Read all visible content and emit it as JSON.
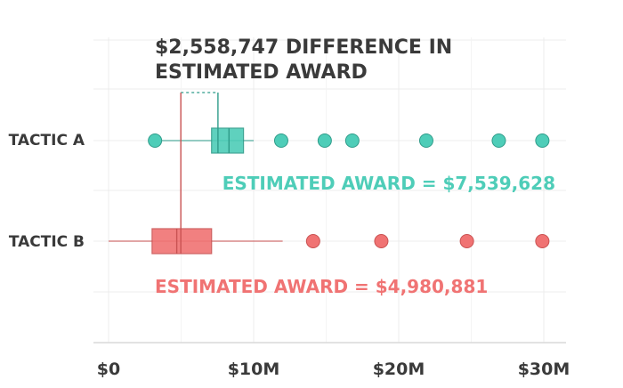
{
  "chart_data": {
    "type": "box",
    "title": "$2,558,747 DIFFERENCE IN ESTIMATED AWARD",
    "title_lines": [
      "$2,558,747 DIFFERENCE IN",
      "ESTIMATED AWARD"
    ],
    "categories": [
      "TACTIC A",
      "TACTIC B"
    ],
    "x_ticks": [
      {
        "value": 0,
        "label": "$0"
      },
      {
        "value": 10000000,
        "label": "$10M"
      },
      {
        "value": 20000000,
        "label": "$20M"
      },
      {
        "value": 30000000,
        "label": "$30M"
      }
    ],
    "xlim": [
      -1000000,
      31500000
    ],
    "grid": true,
    "series": [
      {
        "name": "TACTIC A",
        "color": "#4ecdb8",
        "whisker_low": 3200000,
        "q1": 7100000,
        "median": 8300000,
        "q3": 9300000,
        "whisker_high": 10000000,
        "outliers": [
          3200000,
          11900000,
          14900000,
          16800000,
          21900000,
          26900000,
          29900000
        ],
        "estimate": 7539628,
        "estimate_label": "ESTIMATED AWARD = $7,539,628"
      },
      {
        "name": "TACTIC B",
        "color": "#f07373",
        "whisker_low": 0,
        "q1": 3000000,
        "median": 4700000,
        "q3": 7100000,
        "whisker_high": 12000000,
        "outliers": [
          14100000,
          18800000,
          24700000,
          29900000
        ],
        "estimate": 4980881,
        "estimate_label": "ESTIMATED AWARD = $4,980,881"
      }
    ],
    "difference": 2558747,
    "colors": {
      "text": "#3a3a3a",
      "grid": "#ececec",
      "axis": "#d9d9d9",
      "a_dark": "#2f9c8a",
      "b_dark": "#c95252"
    }
  }
}
